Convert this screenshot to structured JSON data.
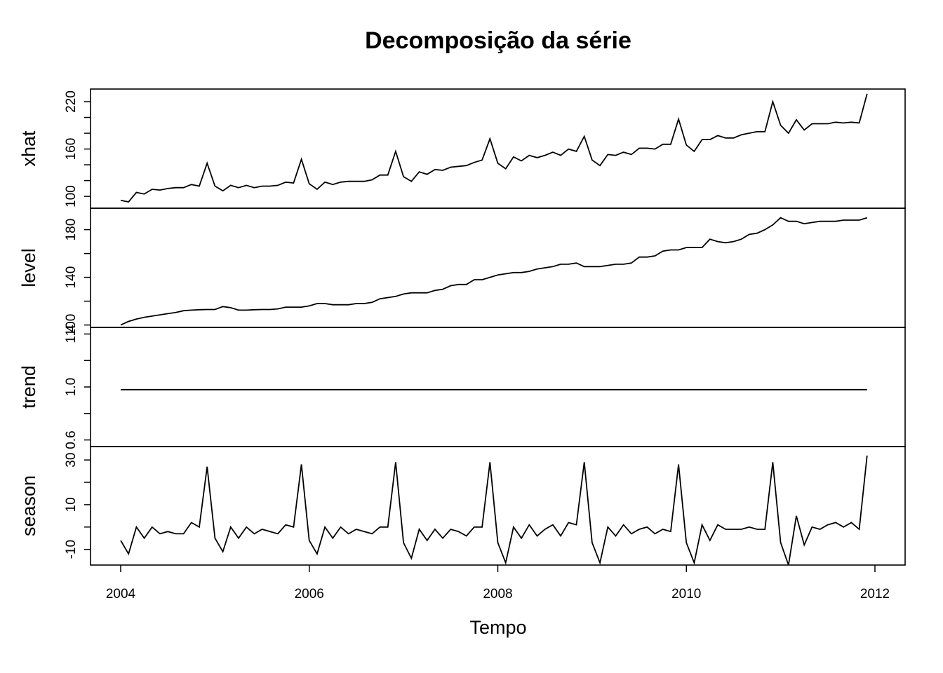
{
  "chart_data": {
    "type": "line",
    "title": "Decomposição da série",
    "xlabel": "Tempo",
    "xlim": [
      2004,
      2012
    ],
    "x_ticks": [
      "2004",
      "2006",
      "2008",
      "2010",
      "2012"
    ],
    "x_start": 2004.0,
    "x_step": 0.0833333,
    "grid": false,
    "panels": [
      {
        "name": "xhat",
        "ylim": [
          85,
          236
        ],
        "ticks": [
          100,
          120,
          140,
          160,
          180,
          200,
          220
        ],
        "tick_labels": [
          "100",
          "",
          "",
          "160",
          "",
          "",
          "220"
        ],
        "values": [
          95,
          93,
          105,
          103,
          109,
          108,
          110,
          111,
          111,
          115,
          113,
          142,
          113,
          107,
          114,
          111,
          114,
          111,
          113,
          113,
          114,
          118,
          117,
          147,
          116,
          109,
          118,
          115,
          118,
          119,
          119,
          119,
          121,
          127,
          127,
          157,
          125,
          119,
          131,
          128,
          134,
          133,
          137,
          138,
          139,
          143,
          146,
          173,
          142,
          135,
          150,
          145,
          152,
          149,
          152,
          156,
          152,
          160,
          157,
          176,
          146,
          139,
          153,
          152,
          156,
          153,
          161,
          161,
          160,
          166,
          166,
          198,
          165,
          157,
          172,
          172,
          177,
          174,
          174,
          178,
          180,
          182,
          182,
          220,
          190,
          180,
          197,
          184,
          192,
          192,
          192,
          194,
          193,
          194,
          193,
          230
        ]
      },
      {
        "name": "level",
        "ylim": [
          98,
          198
        ],
        "ticks": [
          100,
          120,
          140,
          160,
          180
        ],
        "tick_labels": [
          "100",
          "",
          "140",
          "",
          "180"
        ],
        "values": [
          100,
          103,
          105,
          106.5,
          107.5,
          108.5,
          109.5,
          110.5,
          112,
          112.5,
          112.8,
          113,
          113,
          115.5,
          114.5,
          112.5,
          112.5,
          112.8,
          113,
          113,
          113.5,
          115,
          115,
          115,
          116,
          118,
          118,
          117,
          117,
          117,
          118,
          118,
          119,
          122,
          123,
          124,
          126,
          127,
          127,
          127,
          129,
          130,
          133,
          134,
          134,
          138,
          138,
          140,
          142,
          143,
          144,
          144,
          145,
          147,
          148,
          149,
          151,
          151,
          152,
          149,
          149,
          149,
          150,
          151,
          151,
          152,
          157,
          157,
          158,
          162,
          163,
          163,
          165,
          165,
          165,
          172,
          170,
          169,
          170,
          172,
          176,
          177,
          180,
          184,
          190,
          187,
          187,
          185,
          186,
          187,
          187,
          187,
          188,
          188,
          188,
          190
        ]
      },
      {
        "name": "trend",
        "ylim": [
          0.55,
          1.45
        ],
        "ticks": [
          0.6,
          0.8,
          1.0,
          1.2,
          1.4
        ],
        "tick_labels": [
          "0.6",
          "",
          "1.0",
          "",
          "1.4"
        ],
        "values": [
          0.98,
          0.98,
          0.98,
          0.98,
          0.98,
          0.98,
          0.98,
          0.98,
          0.98,
          0.98,
          0.98,
          0.98,
          0.98,
          0.98,
          0.98,
          0.98,
          0.98,
          0.98,
          0.98,
          0.98,
          0.98,
          0.98,
          0.98,
          0.98,
          0.98,
          0.98,
          0.98,
          0.98,
          0.98,
          0.98,
          0.98,
          0.98,
          0.98,
          0.98,
          0.98,
          0.98,
          0.98,
          0.98,
          0.98,
          0.98,
          0.98,
          0.98,
          0.98,
          0.98,
          0.98,
          0.98,
          0.98,
          0.98,
          0.98,
          0.98,
          0.98,
          0.98,
          0.98,
          0.98,
          0.98,
          0.98,
          0.98,
          0.98,
          0.98,
          0.98,
          0.98,
          0.98,
          0.98,
          0.98,
          0.98,
          0.98,
          0.98,
          0.98,
          0.98,
          0.98,
          0.98,
          0.98,
          0.98,
          0.98,
          0.98,
          0.98,
          0.98,
          0.98,
          0.98,
          0.98,
          0.98,
          0.98,
          0.98,
          0.98,
          0.98,
          0.98,
          0.98,
          0.98,
          0.98,
          0.98,
          0.98,
          0.98,
          0.98,
          0.98,
          0.98,
          0.98
        ]
      },
      {
        "name": "season",
        "ylim": [
          -17,
          36
        ],
        "ticks": [
          -10,
          0,
          10,
          20,
          30
        ],
        "tick_labels": [
          "-10",
          "",
          "10",
          "",
          "30"
        ],
        "values": [
          -6,
          -12,
          0,
          -5,
          0,
          -3,
          -2,
          -3,
          -3,
          2,
          0,
          27,
          -5,
          -11,
          0,
          -5,
          0,
          -3,
          -1,
          -2,
          -3,
          1,
          0,
          28,
          -6,
          -12,
          0,
          -5,
          0,
          -3,
          -1,
          -2,
          -3,
          0,
          0,
          29,
          -7,
          -14,
          -1,
          -6,
          -1,
          -5,
          -1,
          -2,
          -4,
          0,
          0,
          29,
          -7,
          -16,
          0,
          -5,
          1,
          -4,
          -1,
          1,
          -4,
          2,
          1,
          29,
          -7,
          -16,
          0,
          -4,
          1,
          -3,
          -1,
          0,
          -3,
          -1,
          -2,
          28,
          -7,
          -16,
          1,
          -6,
          1,
          -1,
          -1,
          -1,
          0,
          -1,
          -1,
          29,
          -7,
          -17,
          5,
          -8,
          0,
          -1,
          1,
          2,
          0,
          2,
          -1,
          32
        ]
      }
    ]
  }
}
